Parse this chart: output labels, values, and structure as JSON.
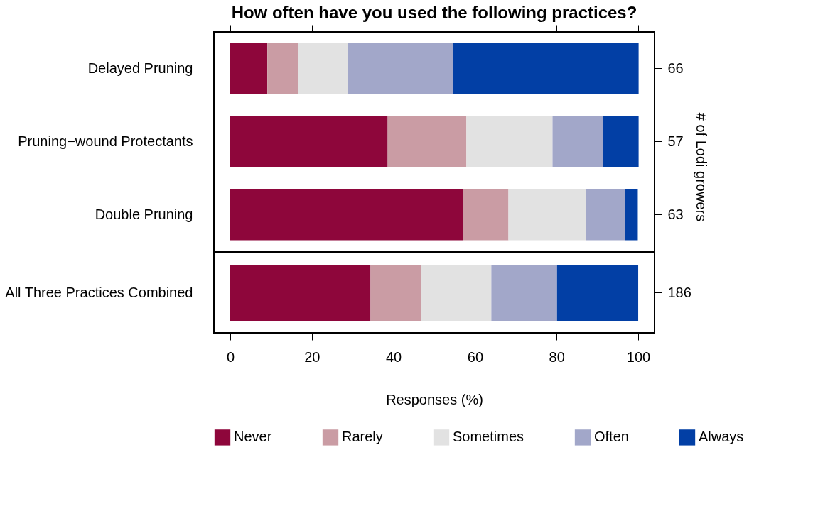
{
  "chart_data": [
    {
      "type": "bar",
      "orientation": "horizontal",
      "stacked": true,
      "title": "How often have you used the following practices?",
      "categories": [
        "Delayed Pruning",
        "Pruning−wound Protectants",
        "Double Pruning"
      ],
      "y2_categories": [
        "66",
        "57",
        "63"
      ],
      "y2label": "# of Lodi growers",
      "xlim": [
        -4,
        104
      ],
      "xticks": [
        0,
        20,
        40,
        60,
        80,
        100
      ],
      "tick_labels": "y",
      "legend": "bottom",
      "grid": false,
      "series": [
        {
          "name": "Never",
          "color": "#8e063b",
          "values": [
            9.1,
            38.6,
            57.1
          ]
        },
        {
          "name": "Rarely",
          "color": "#ca9ca4",
          "values": [
            7.6,
            19.3,
            11.1
          ]
        },
        {
          "name": "Sometimes",
          "color": "#e2e2e2",
          "values": [
            12.1,
            21.1,
            19.0
          ]
        },
        {
          "name": "Often",
          "color": "#a2a7c9",
          "values": [
            25.8,
            12.3,
            9.5
          ]
        },
        {
          "name": "Always",
          "color": "#023fa5",
          "values": [
            45.5,
            8.8,
            3.2
          ]
        }
      ]
    },
    {
      "type": "bar",
      "orientation": "horizontal",
      "stacked": true,
      "categories": [
        "All Three Practices Combined"
      ],
      "y2_categories": [
        "186"
      ],
      "xlabel": "Responses (%)",
      "xlim": [
        -4,
        104
      ],
      "xticks": [
        0,
        20,
        40,
        60,
        80,
        100
      ],
      "legend": "bottom",
      "grid": false,
      "series": [
        {
          "name": "Never",
          "color": "#8e063b",
          "values": [
            34.4
          ]
        },
        {
          "name": "Rarely",
          "color": "#ca9ca4",
          "values": [
            12.4
          ]
        },
        {
          "name": "Sometimes",
          "color": "#e2e2e2",
          "values": [
            17.2
          ]
        },
        {
          "name": "Often",
          "color": "#a2a7c9",
          "values": [
            16.1
          ]
        },
        {
          "name": "Always",
          "color": "#023fa5",
          "values": [
            19.9
          ]
        }
      ]
    }
  ]
}
